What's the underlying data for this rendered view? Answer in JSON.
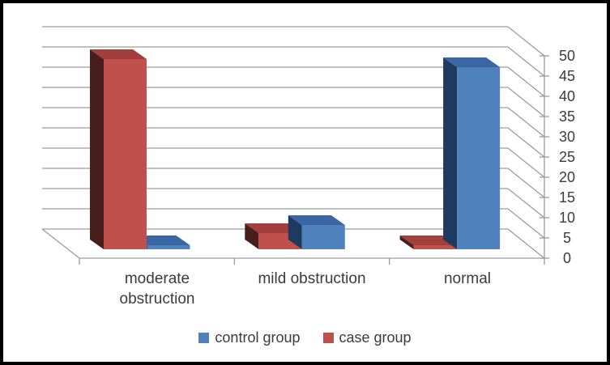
{
  "figure": {
    "background": "#FFFFFF",
    "border_color": "#000000",
    "gridline_color": "#9C9C9C",
    "text_color": "#3B3B3B"
  },
  "chart_data": {
    "type": "bar",
    "style": "3d-clustered-column",
    "title": "",
    "categories": [
      "moderate obstruction",
      "mild obstruction",
      "normal"
    ],
    "series": [
      {
        "name": "control group",
        "color": "#4F81BD",
        "color_top": "#3A67A3",
        "color_side": "#1E3A5F",
        "values": [
          1,
          6,
          45
        ]
      },
      {
        "name": "case group",
        "color": "#C0504D",
        "color_top": "#A13F3C",
        "color_side": "#471E1C",
        "values": [
          47,
          4,
          1
        ]
      }
    ],
    "cluster_order_left_to_right": [
      "case group",
      "control group"
    ],
    "value_axis": {
      "min": 0,
      "max": 50,
      "step": 5,
      "position": "right"
    },
    "xlabel": "",
    "ylabel": "",
    "grid": true,
    "legend_position": "bottom"
  }
}
